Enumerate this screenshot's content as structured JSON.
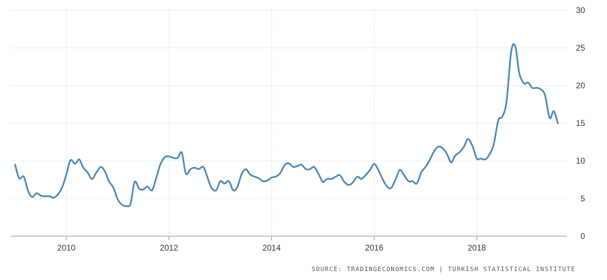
{
  "chart_data": {
    "type": "line",
    "xlabel": "",
    "ylabel": "",
    "xlim": [
      2009.0,
      2019.75
    ],
    "ylim": [
      0,
      30
    ],
    "x_ticks": [
      2010,
      2012,
      2014,
      2016,
      2018
    ],
    "x_tick_labels": [
      "2010",
      "2012",
      "2014",
      "2016",
      "2018"
    ],
    "y_ticks": [
      0,
      5,
      10,
      15,
      20,
      25,
      30
    ],
    "y_tick_labels": [
      "0",
      "5",
      "10",
      "15",
      "20",
      "25",
      "30"
    ],
    "grid": true,
    "line_color": "#4a86b4",
    "series": [
      {
        "x": [
          2009.0,
          2009.08,
          2009.17,
          2009.25,
          2009.33,
          2009.42,
          2009.5,
          2009.58,
          2009.67,
          2009.75,
          2009.83,
          2009.92,
          2010.0,
          2010.08,
          2010.17,
          2010.25,
          2010.33,
          2010.42,
          2010.5,
          2010.58,
          2010.67,
          2010.75,
          2010.83,
          2010.92,
          2011.0,
          2011.08,
          2011.17,
          2011.25,
          2011.33,
          2011.42,
          2011.5,
          2011.58,
          2011.67,
          2011.75,
          2011.83,
          2011.92,
          2012.0,
          2012.08,
          2012.17,
          2012.25,
          2012.33,
          2012.42,
          2012.5,
          2012.58,
          2012.67,
          2012.75,
          2012.83,
          2012.92,
          2013.0,
          2013.08,
          2013.17,
          2013.25,
          2013.33,
          2013.42,
          2013.5,
          2013.58,
          2013.67,
          2013.75,
          2013.83,
          2013.92,
          2014.0,
          2014.08,
          2014.17,
          2014.25,
          2014.33,
          2014.42,
          2014.5,
          2014.58,
          2014.67,
          2014.75,
          2014.83,
          2014.92,
          2015.0,
          2015.08,
          2015.17,
          2015.25,
          2015.33,
          2015.42,
          2015.5,
          2015.58,
          2015.67,
          2015.75,
          2015.83,
          2015.92,
          2016.0,
          2016.08,
          2016.17,
          2016.25,
          2016.33,
          2016.42,
          2016.5,
          2016.58,
          2016.67,
          2016.75,
          2016.83,
          2016.92,
          2017.0,
          2017.08,
          2017.17,
          2017.25,
          2017.33,
          2017.42,
          2017.5,
          2017.58,
          2017.67,
          2017.75,
          2017.83,
          2017.92,
          2018.0,
          2018.08,
          2018.17,
          2018.25,
          2018.33,
          2018.42,
          2018.5,
          2018.58,
          2018.67,
          2018.75,
          2018.83,
          2018.92,
          2019.0,
          2019.08,
          2019.17,
          2019.25,
          2019.33,
          2019.42,
          2019.5,
          2019.58
        ],
        "y": [
          9.5,
          7.7,
          7.9,
          6.1,
          5.2,
          5.7,
          5.4,
          5.3,
          5.3,
          5.1,
          5.5,
          6.5,
          8.2,
          10.1,
          9.6,
          10.2,
          9.1,
          8.4,
          7.6,
          8.4,
          9.2,
          8.6,
          7.3,
          6.4,
          4.9,
          4.2,
          4.0,
          4.3,
          7.2,
          6.3,
          6.2,
          6.6,
          6.1,
          7.7,
          9.5,
          10.5,
          10.6,
          10.4,
          10.4,
          11.1,
          8.3,
          8.9,
          9.1,
          8.9,
          9.2,
          7.8,
          6.4,
          6.1,
          7.3,
          7.0,
          7.3,
          6.1,
          6.5,
          8.3,
          8.9,
          8.2,
          7.9,
          7.7,
          7.3,
          7.4,
          7.8,
          7.9,
          8.4,
          9.4,
          9.7,
          9.2,
          9.3,
          9.5,
          8.9,
          8.9,
          9.2,
          8.2,
          7.2,
          7.6,
          7.6,
          7.9,
          8.1,
          7.2,
          6.8,
          7.1,
          7.9,
          7.6,
          8.1,
          8.8,
          9.6,
          8.8,
          7.5,
          6.6,
          6.4,
          7.6,
          8.8,
          8.1,
          7.3,
          7.3,
          7.0,
          8.5,
          9.2,
          10.1,
          11.3,
          11.9,
          11.7,
          10.9,
          9.8,
          10.7,
          11.2,
          11.9,
          12.9,
          11.9,
          10.3,
          10.3,
          10.2,
          10.9,
          12.2,
          15.4,
          15.9,
          17.9,
          24.5,
          25.2,
          21.6,
          20.3,
          20.4,
          19.7,
          19.7,
          19.5,
          18.7,
          15.7,
          16.6,
          15.0
        ]
      }
    ]
  },
  "source": {
    "text": "SOURCE: TRADINGECONOMICS.COM | TURKISH STATISTICAL INSTITUTE"
  }
}
